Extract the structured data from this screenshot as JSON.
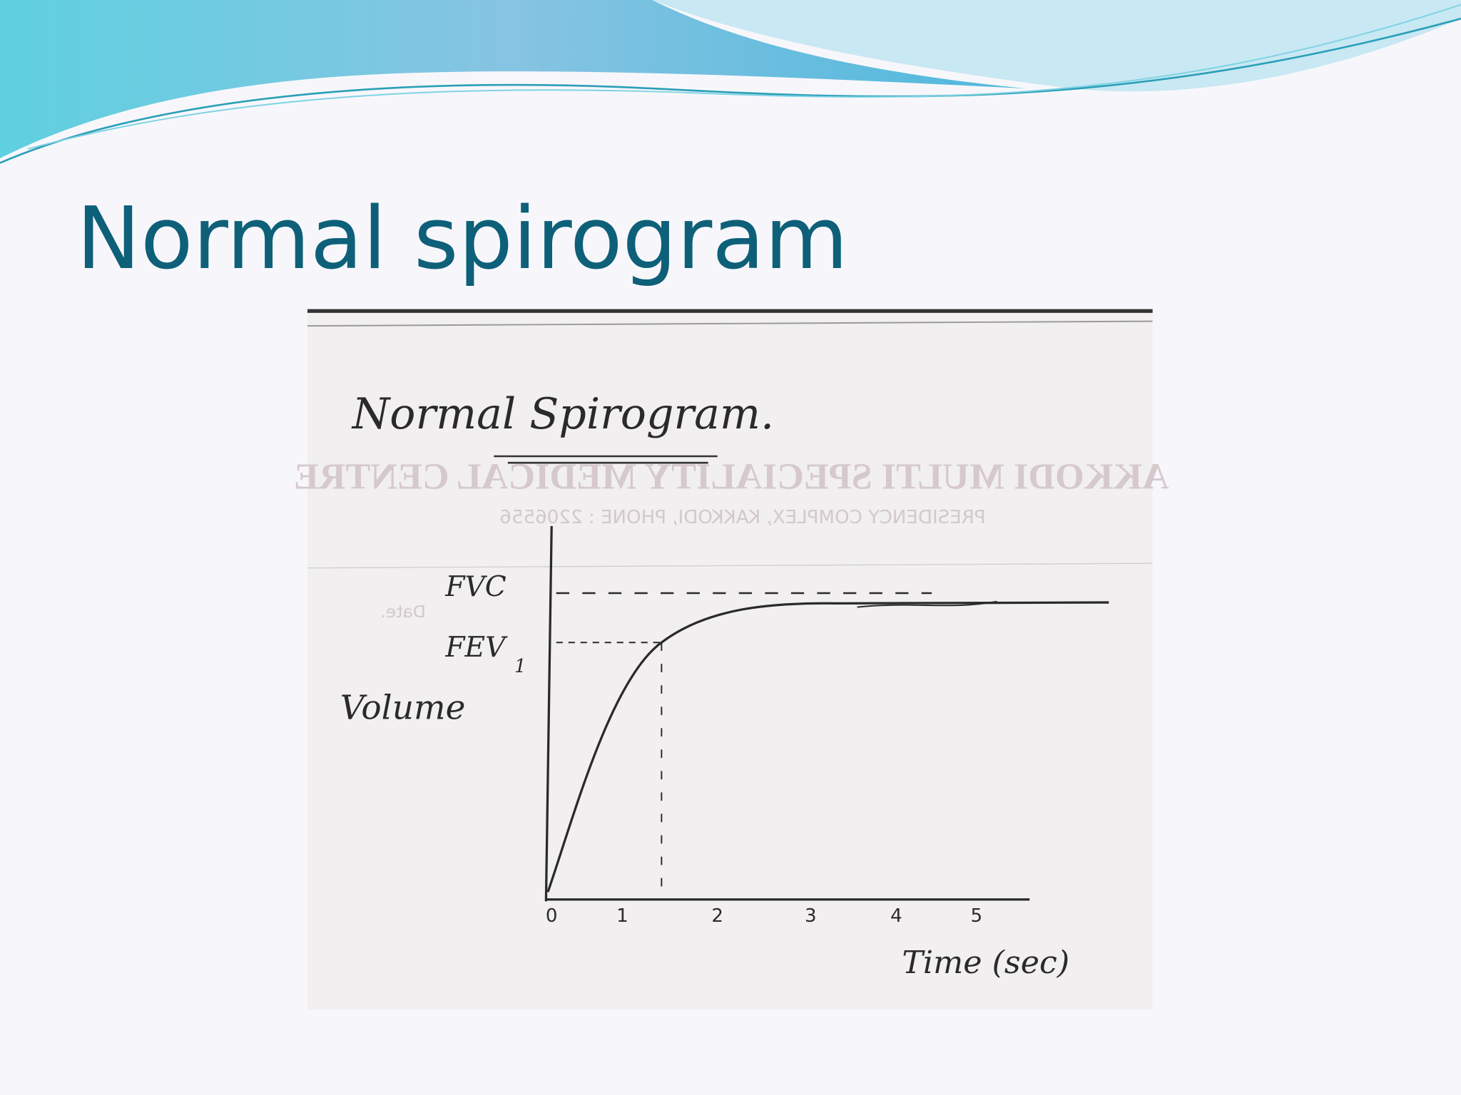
{
  "slide": {
    "title": "Normal spirogram",
    "figure": {
      "heading": "Normal Spirogram.",
      "letterhead": "AKKODI MULTI SPECIALITY MEDICAL CENTRE",
      "address": "PRESIDENCY COMPLEX, KAKKODI, PHONE : 2206556",
      "date_label": "Date.",
      "fvc": "FVC",
      "fev": "FEV",
      "fev_subscript": "1",
      "y_axis_label": "Volume",
      "x_axis_label": "Time (sec)",
      "x_ticks": [
        "0",
        "1",
        "2",
        "3",
        "4",
        "5"
      ]
    }
  }
}
